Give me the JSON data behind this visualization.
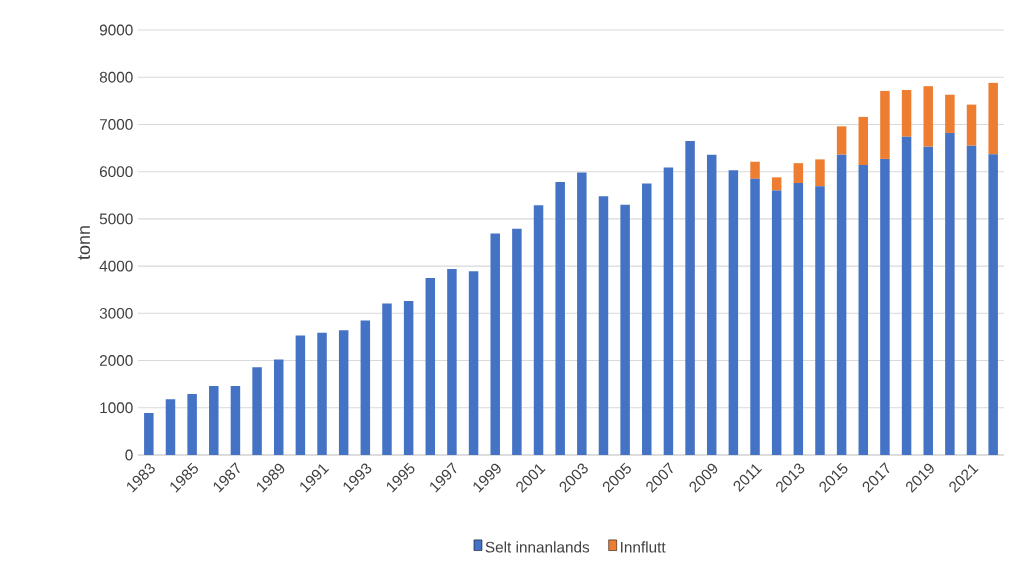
{
  "chart_data": {
    "type": "bar",
    "stacked": true,
    "ylabel": "tonn",
    "categories": [
      "1983",
      null,
      "1985",
      null,
      "1987",
      null,
      "1989",
      null,
      "1991",
      null,
      "1993",
      null,
      "1995",
      null,
      "1997",
      null,
      "1999",
      null,
      "2001",
      null,
      "2003",
      null,
      "2005",
      null,
      "2007",
      null,
      "2009",
      null,
      "2011",
      null,
      "2013",
      null,
      "2015",
      null,
      "2017",
      null,
      "2019",
      null,
      "2021",
      null
    ],
    "series": [
      {
        "name": "Selt innanlands",
        "color": "#4472c4",
        "values": [
          890,
          1180,
          1290,
          1460,
          1460,
          1860,
          2020,
          2530,
          2590,
          2640,
          2850,
          3210,
          3260,
          3750,
          3940,
          3890,
          4690,
          4790,
          5290,
          5780,
          5980,
          5480,
          5300,
          5750,
          6090,
          6650,
          6360,
          6030,
          5850,
          5600,
          5760,
          5690,
          6360,
          6140,
          6270,
          6740,
          6530,
          6820,
          6550,
          6370
        ]
      },
      {
        "name": "Innflutt",
        "color": "#ed7d31",
        "values": [
          null,
          null,
          null,
          null,
          null,
          null,
          null,
          null,
          null,
          null,
          null,
          null,
          null,
          null,
          null,
          null,
          null,
          null,
          null,
          null,
          null,
          null,
          null,
          null,
          null,
          null,
          null,
          null,
          360,
          280,
          420,
          570,
          600,
          1020,
          1440,
          990,
          1280,
          810,
          870,
          1510
        ]
      }
    ],
    "ylim": [
      0,
      9000
    ],
    "yticks": [
      0,
      1000,
      2000,
      3000,
      4000,
      5000,
      6000,
      7000,
      8000,
      9000
    ],
    "grid": "y",
    "legend": "bottom"
  }
}
